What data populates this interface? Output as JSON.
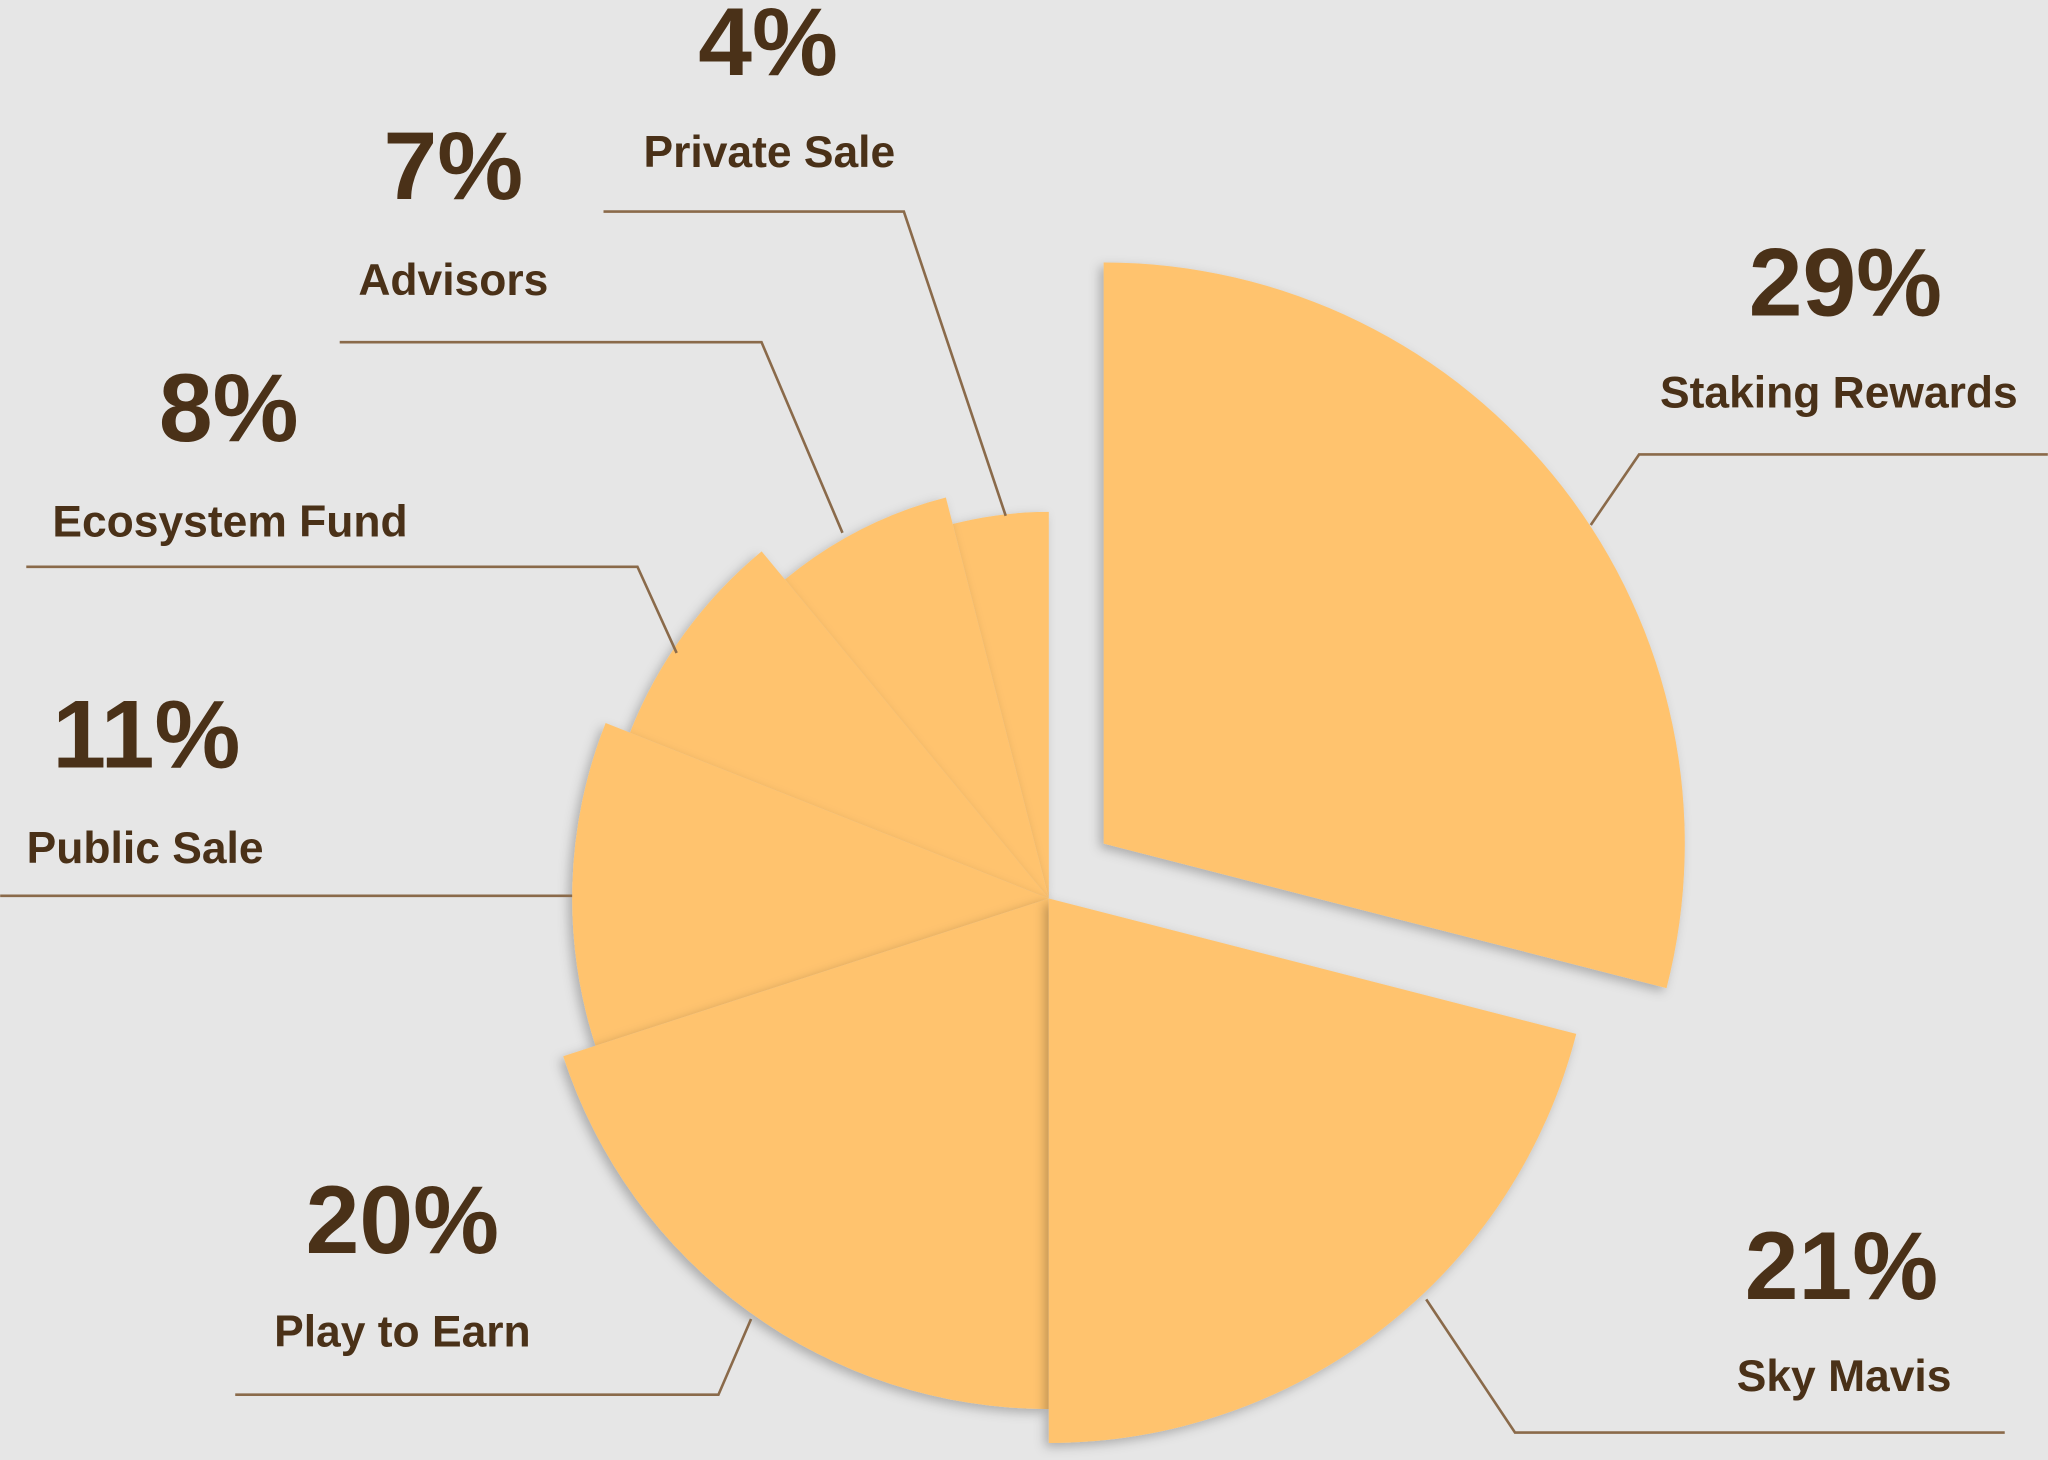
{
  "chart_data": {
    "type": "pie",
    "categories": [
      "Staking Rewards",
      "Sky Mavis",
      "Play to Earn",
      "Public Sale",
      "Ecosystem Fund",
      "Advisors",
      "Private Sale"
    ],
    "values": [
      29,
      21,
      20,
      11,
      8,
      7,
      4
    ],
    "value_labels": [
      "29%",
      "21%",
      "20%",
      "11%",
      "8%",
      "7%",
      "4%"
    ],
    "color": "#ffc36e"
  }
}
